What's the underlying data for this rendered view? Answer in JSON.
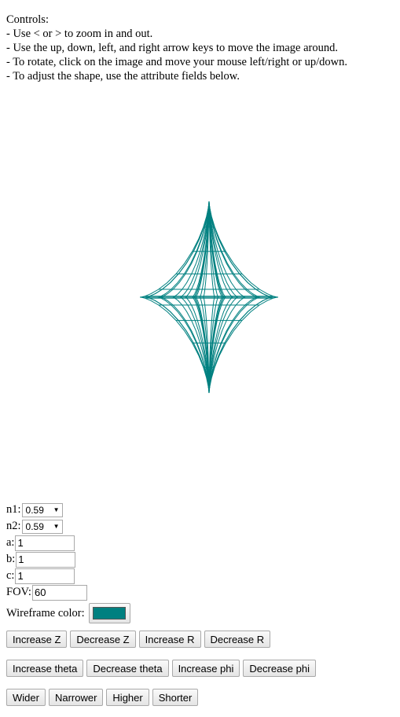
{
  "instructions": {
    "heading": "Controls:",
    "lines": [
      "- Use < or > to zoom in and out.",
      "- Use the up, down, left, and right arrow keys to move the image around.",
      "- To rotate, click on the image and move your mouse left/right or up/down.",
      "- To adjust the shape, use the attribute fields below."
    ]
  },
  "attributes": {
    "n1": {
      "label": "n1:",
      "value": "0.59"
    },
    "n2": {
      "label": "n2:",
      "value": "0.59"
    },
    "a": {
      "label": "a:",
      "value": "1"
    },
    "b": {
      "label": "b:",
      "value": "1"
    },
    "c": {
      "label": "c:",
      "value": "1"
    },
    "fov": {
      "label": "FOV:",
      "value": "60"
    },
    "wireframe_color": {
      "label": "Wireframe color:",
      "value": "#008080"
    }
  },
  "buttons": {
    "row1": [
      "Increase Z",
      "Decrease Z",
      "Increase R",
      "Decrease R"
    ],
    "row2": [
      "Increase theta",
      "Decrease theta",
      "Increase phi",
      "Decrease phi"
    ],
    "row3": [
      "Wider",
      "Narrower",
      "Higher",
      "Shorter"
    ]
  },
  "colors": {
    "wireframe": "#008080",
    "background": "#ffffff"
  }
}
